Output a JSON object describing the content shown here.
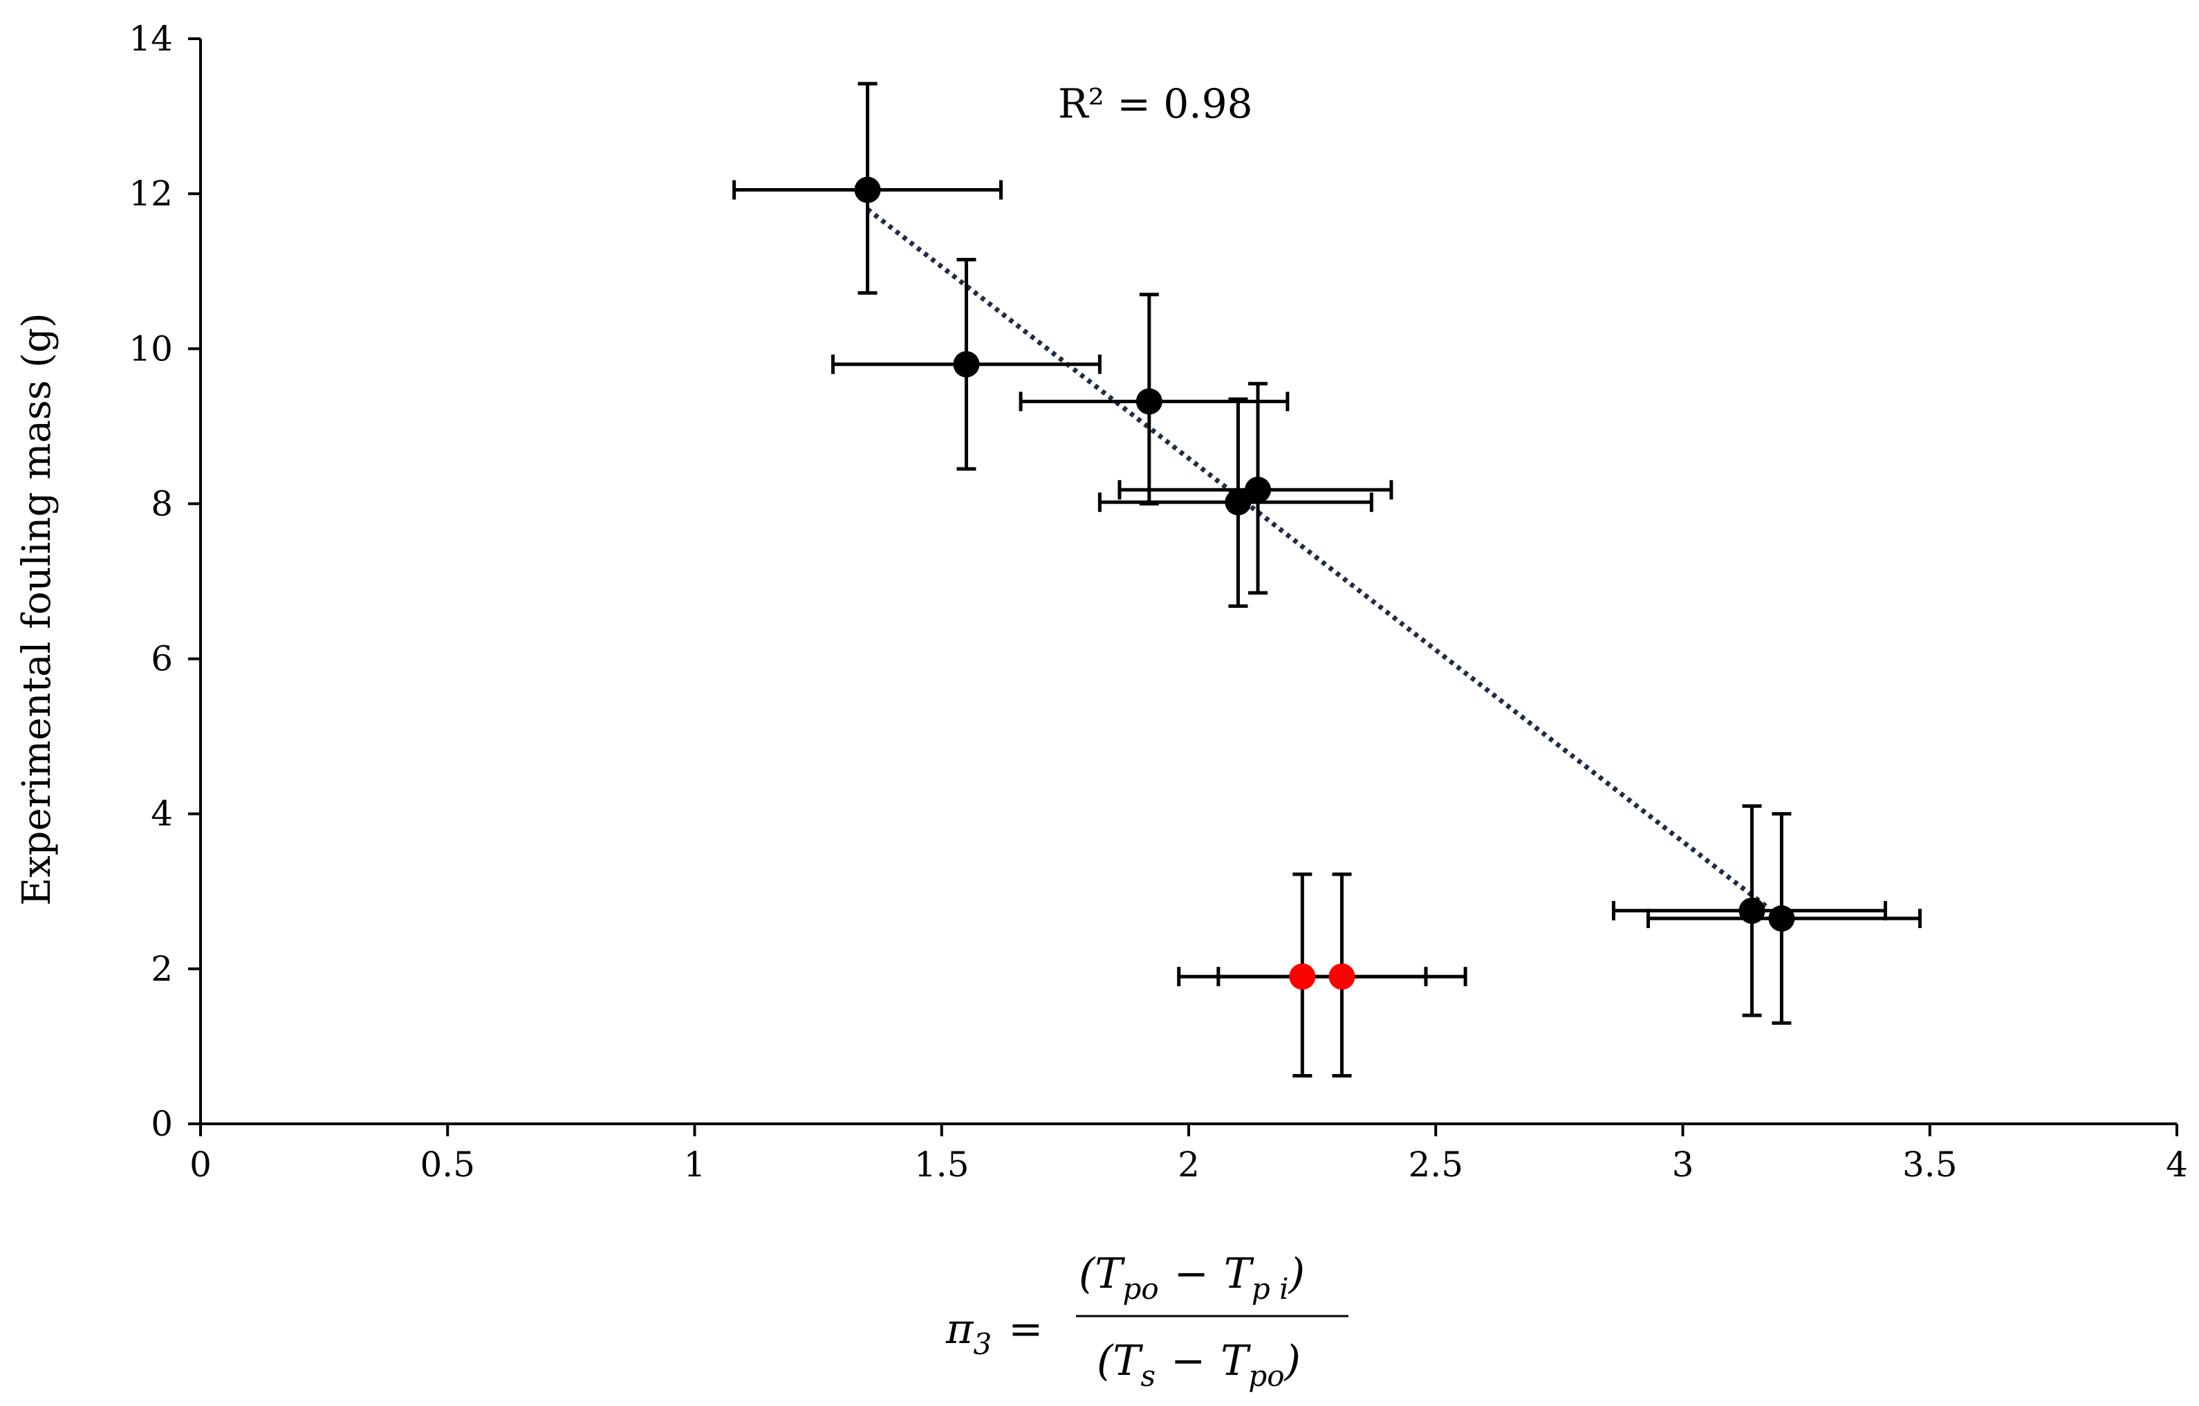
{
  "chart_data": {
    "type": "scatter",
    "title": "",
    "ylabel": "Experimental fouling mass (g)",
    "xlabel_formula": {
      "lhs": "π",
      "lhs_sub": "3",
      "equals": "=",
      "numerator": {
        "open": "(T",
        "sub1": "po",
        "minus": "−",
        "t2": "T",
        "sub2": "p i",
        "close": ")"
      },
      "denominator": {
        "open": "(T",
        "sub1": "s",
        "minus": "−",
        "t2": "T",
        "sub2": "po",
        "close": ")"
      }
    },
    "xlim": [
      0,
      4
    ],
    "ylim": [
      0,
      14
    ],
    "x_ticks": [
      "0",
      "0.5",
      "1",
      "1.5",
      "2",
      "2.5",
      "3",
      "3.5",
      "4"
    ],
    "y_ticks": [
      "0",
      "2",
      "4",
      "6",
      "8",
      "10",
      "12",
      "14"
    ],
    "grid": false,
    "legend": "none",
    "annotation": "R² = 0.98",
    "series": [
      {
        "color": "#000000",
        "points": [
          {
            "x": 1.35,
            "y": 12.05,
            "xerr": [
              1.08,
              1.62
            ],
            "yerr": [
              10.72,
              13.42
            ]
          },
          {
            "x": 1.55,
            "y": 9.8,
            "xerr": [
              1.28,
              1.82
            ],
            "yerr": [
              8.45,
              11.15
            ]
          },
          {
            "x": 1.92,
            "y": 9.32,
            "xerr": [
              1.66,
              2.2
            ],
            "yerr": [
              8.0,
              10.7
            ]
          },
          {
            "x": 2.1,
            "y": 8.02,
            "xerr": [
              1.82,
              2.37
            ],
            "yerr": [
              6.68,
              9.35
            ]
          },
          {
            "x": 2.14,
            "y": 8.18,
            "xerr": [
              1.86,
              2.41
            ],
            "yerr": [
              6.85,
              9.55
            ]
          },
          {
            "x": 3.14,
            "y": 2.75,
            "xerr": [
              2.86,
              3.41
            ],
            "yerr": [
              1.4,
              4.1
            ]
          },
          {
            "x": 3.2,
            "y": 2.65,
            "xerr": [
              2.93,
              3.48
            ],
            "yerr": [
              1.3,
              4.0
            ]
          }
        ]
      },
      {
        "color": "#ff0000",
        "points": [
          {
            "x": 2.23,
            "y": 1.9,
            "xerr": [
              1.98,
              2.48
            ],
            "yerr": [
              0.62,
              3.22
            ]
          },
          {
            "x": 2.31,
            "y": 1.9,
            "xerr": [
              2.06,
              2.56
            ],
            "yerr": [
              0.62,
              3.22
            ]
          }
        ]
      }
    ],
    "trendline": {
      "style": "dotted",
      "color": "#1f2d44",
      "x": [
        1.35,
        3.17
      ],
      "y": [
        11.8,
        2.8
      ]
    }
  }
}
